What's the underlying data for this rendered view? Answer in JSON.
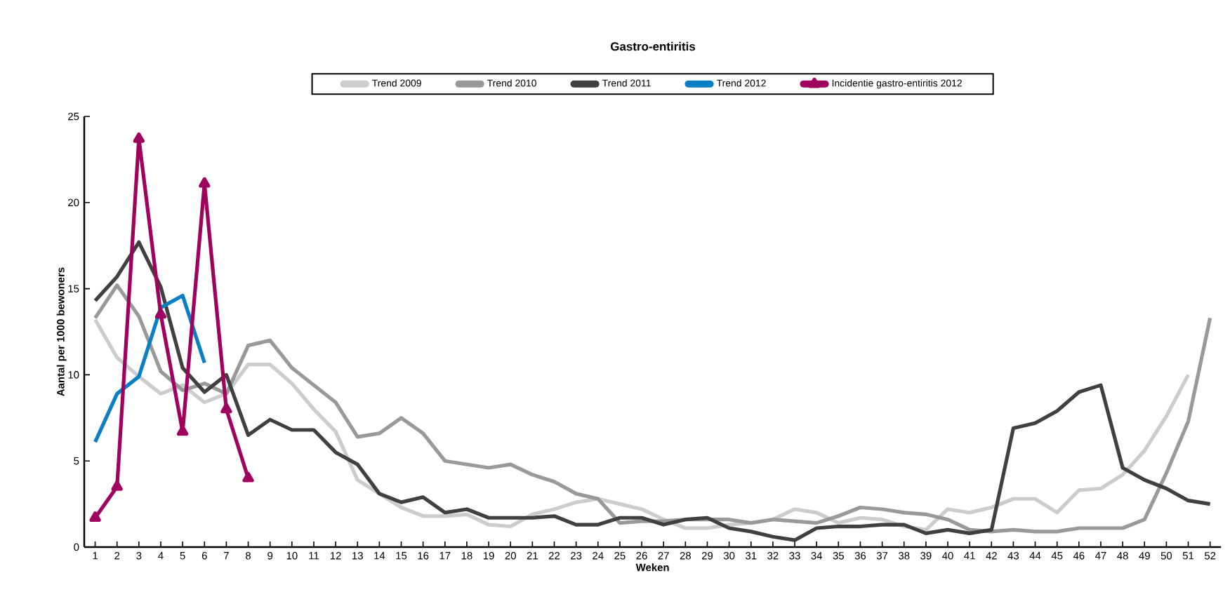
{
  "chart_data": {
    "type": "line",
    "title": "Gastro-entiritis",
    "xlabel": "Weken",
    "ylabel": "Aantal per 1000 bewoners",
    "categories": [
      "1",
      "2",
      "3",
      "4",
      "5",
      "6",
      "7",
      "8",
      "9",
      "10",
      "11",
      "12",
      "13",
      "14",
      "15",
      "16",
      "17",
      "18",
      "19",
      "20",
      "21",
      "22",
      "23",
      "24",
      "25",
      "26",
      "27",
      "28",
      "29",
      "30",
      "31",
      "32",
      "33",
      "34",
      "35",
      "36",
      "37",
      "38",
      "39",
      "40",
      "41",
      "42",
      "43",
      "44",
      "45",
      "46",
      "47",
      "48",
      "49",
      "50",
      "51",
      "52"
    ],
    "ylim": [
      0,
      25
    ],
    "yticks": [
      0,
      5,
      10,
      15,
      20,
      25
    ],
    "legend": "top",
    "line_style": "solid",
    "series": [
      {
        "name": "Trend 2009",
        "color": "#cccccc",
        "marker": "none",
        "values": [
          13.2,
          11.0,
          9.9,
          8.9,
          9.4,
          8.4,
          8.9,
          10.6,
          10.6,
          9.5,
          8.0,
          6.7,
          3.9,
          3.1,
          2.3,
          1.8,
          1.8,
          1.9,
          1.3,
          1.2,
          1.9,
          2.2,
          2.6,
          2.8,
          2.5,
          2.2,
          1.6,
          1.1,
          1.1,
          1.3,
          1.4,
          1.6,
          2.2,
          2.0,
          1.4,
          1.7,
          1.6,
          1.2,
          1.0,
          2.2,
          2.0,
          2.3,
          2.8,
          2.8,
          2.0,
          3.3,
          3.4,
          4.2,
          5.6,
          7.6,
          10.0,
          null
        ]
      },
      {
        "name": "Trend 2010",
        "color": "#999999",
        "marker": "none",
        "values": [
          13.3,
          15.2,
          13.4,
          10.2,
          9.1,
          9.5,
          8.9,
          11.7,
          12.0,
          10.4,
          9.4,
          8.4,
          6.4,
          6.6,
          7.5,
          6.6,
          5.0,
          4.8,
          4.6,
          4.8,
          4.2,
          3.8,
          3.1,
          2.8,
          1.4,
          1.5,
          1.5,
          1.6,
          1.6,
          1.6,
          1.4,
          1.6,
          1.5,
          1.4,
          1.8,
          2.3,
          2.2,
          2.0,
          1.9,
          1.6,
          1.0,
          0.9,
          1.0,
          0.9,
          0.9,
          1.1,
          1.1,
          1.1,
          1.6,
          4.3,
          7.3,
          13.3
        ]
      },
      {
        "name": "Trend 2011",
        "color": "#404040",
        "marker": "none",
        "values": [
          14.3,
          15.7,
          17.7,
          15.1,
          10.4,
          9.0,
          10.0,
          6.5,
          7.4,
          6.8,
          6.8,
          5.5,
          4.8,
          3.1,
          2.6,
          2.9,
          2.0,
          2.2,
          1.7,
          1.7,
          1.7,
          1.8,
          1.3,
          1.3,
          1.7,
          1.7,
          1.3,
          1.6,
          1.7,
          1.1,
          0.9,
          0.6,
          0.4,
          1.1,
          1.2,
          1.2,
          1.3,
          1.3,
          0.8,
          1.0,
          0.8,
          1.0,
          6.9,
          7.2,
          7.9,
          9.0,
          9.4,
          4.6,
          3.9,
          3.4,
          2.7,
          2.5
        ]
      },
      {
        "name": "Trend 2012",
        "color": "#0a7fc4",
        "marker": "none",
        "values": [
          6.1,
          8.9,
          9.9,
          13.9,
          14.6,
          10.7,
          null,
          null,
          null,
          null,
          null,
          null,
          null,
          null,
          null,
          null,
          null,
          null,
          null,
          null,
          null,
          null,
          null,
          null,
          null,
          null,
          null,
          null,
          null,
          null,
          null,
          null,
          null,
          null,
          null,
          null,
          null,
          null,
          null,
          null,
          null,
          null,
          null,
          null,
          null,
          null,
          null,
          null,
          null,
          null,
          null,
          null
        ]
      },
      {
        "name": "Incidentie gastro-entiritis 2012",
        "color": "#a0005e",
        "marker": "triangle",
        "values": [
          1.7,
          3.5,
          23.7,
          13.5,
          6.7,
          21.1,
          8.0,
          4.0,
          null,
          null,
          null,
          null,
          null,
          null,
          null,
          null,
          null,
          null,
          null,
          null,
          null,
          null,
          null,
          null,
          null,
          null,
          null,
          null,
          null,
          null,
          null,
          null,
          null,
          null,
          null,
          null,
          null,
          null,
          null,
          null,
          null,
          null,
          null,
          null,
          null,
          null,
          null,
          null,
          null,
          null,
          null,
          null
        ]
      }
    ]
  }
}
